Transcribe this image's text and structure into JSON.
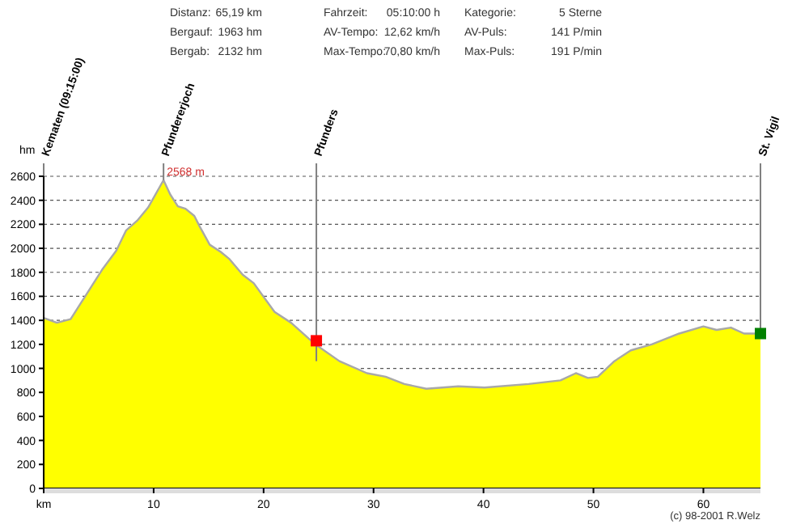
{
  "chart_data": {
    "type": "area",
    "ylabel": "hm",
    "grid": "y",
    "xlim": [
      0,
      65.19
    ],
    "ylim": [
      0,
      2600
    ],
    "xticks": [
      {
        "value": 0,
        "label": "km"
      },
      10,
      20,
      30,
      40,
      50,
      60
    ],
    "yticks": [
      0,
      200,
      400,
      600,
      800,
      1000,
      1200,
      1400,
      1600,
      1800,
      2000,
      2200,
      2400,
      2600
    ],
    "series": [
      {
        "type": "area",
        "color": "#ffff00",
        "x": [
          0,
          1.2,
          2.45,
          5.3,
          6.6,
          7.5,
          8.5,
          9.5,
          10.9,
          11.5,
          12.2,
          12.9,
          13.7,
          14.2,
          15.1,
          16.1,
          16.9,
          18.1,
          19.1,
          21,
          22.5,
          24.7,
          26.9,
          29.4,
          31.1,
          32.8,
          34.8,
          37.7,
          40.1,
          44.1,
          47,
          48.4,
          49.5,
          50.4,
          51.9,
          53.4,
          55.3,
          57.8,
          60,
          61.2,
          62.5,
          63.7,
          65.19
        ],
        "values": [
          1420,
          1380,
          1410,
          1820,
          1980,
          2150,
          2230,
          2340,
          2568,
          2450,
          2350,
          2330,
          2270,
          2180,
          2030,
          1970,
          1910,
          1780,
          1710,
          1470,
          1380,
          1200,
          1060,
          960,
          930,
          870,
          830,
          850,
          840,
          870,
          900,
          960,
          920,
          930,
          1060,
          1150,
          1200,
          1290,
          1350,
          1320,
          1340,
          1290,
          1290
        ]
      },
      {
        "type": "scatter",
        "marker": "square",
        "x": [
          24.8,
          65.19
        ],
        "values": [
          1230,
          1290
        ],
        "colors": [
          "#ff0000",
          "#008000"
        ]
      }
    ],
    "ref_lines": [
      {
        "axis": "x",
        "value": 0,
        "label": "Kematen (09:15:00)",
        "color": "#808080"
      },
      {
        "axis": "x",
        "value": 10.9,
        "label": "Pfundererjoch",
        "color": "#808080"
      },
      {
        "axis": "x",
        "value": 24.8,
        "label": "Pfunders",
        "color": "#808080"
      },
      {
        "axis": "x",
        "value": 65.19,
        "label": "St. Vigil",
        "color": "#808080"
      }
    ],
    "annotations": [
      "Distanz:",
      "65,19 km",
      "Fahrzeit:",
      "05:10:00 h",
      "Kategorie:",
      "5 Sterne",
      "Bergauf:",
      "1963 hm",
      "AV-Tempo:",
      "12,62 km/h",
      "AV-Puls:",
      "141 P/min",
      "Bergab:",
      "2132 hm",
      "Max-Tempo:",
      "70,80 km/h",
      "Max-Puls:",
      "191 P/min",
      "(c) 98-2001 R.Welz",
      {
        "text": "2568 m",
        "x": 10.9,
        "y": 2568
      }
    ]
  }
}
